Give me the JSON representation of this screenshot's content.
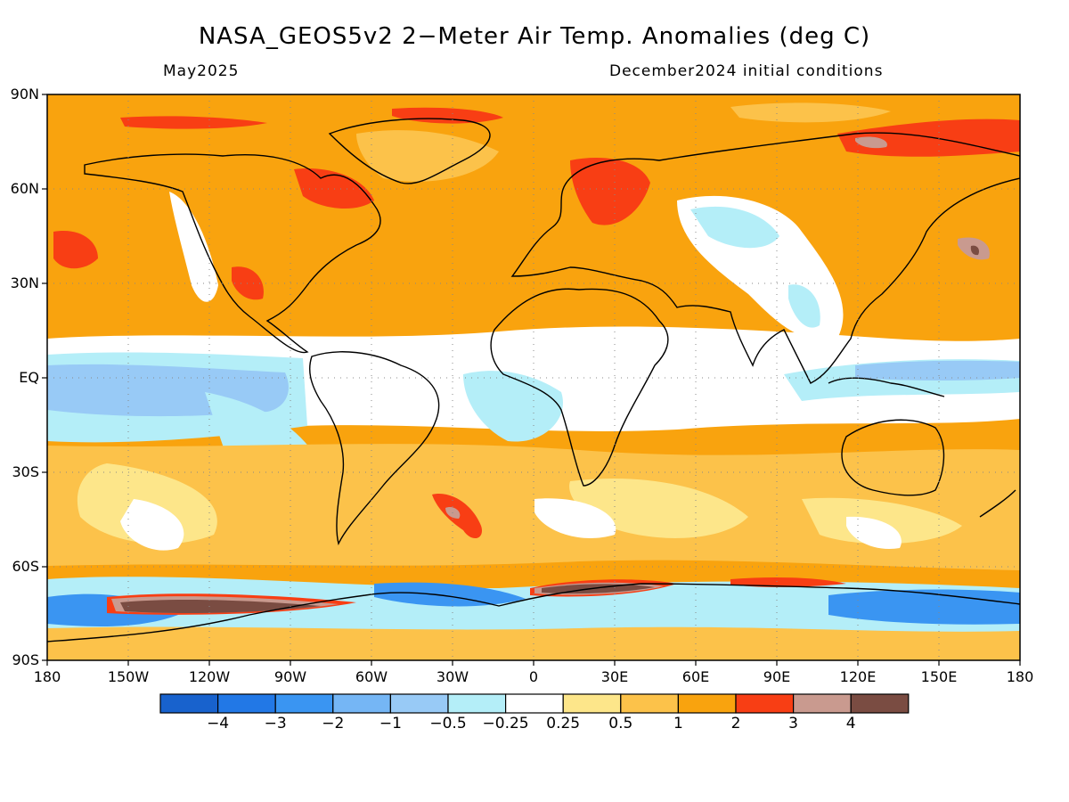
{
  "title": "NASA_GEOS5v2 2−Meter Air Temp. Anomalies (deg C)",
  "subtitle_left": "May2025",
  "subtitle_right": "December2024 initial conditions",
  "lat_labels": [
    "90N",
    "60N",
    "30N",
    "EQ",
    "30S",
    "60S",
    "90S"
  ],
  "lon_labels": [
    "180",
    "150W",
    "120W",
    "90W",
    "60W",
    "30W",
    "0",
    "30E",
    "60E",
    "90E",
    "120E",
    "150E",
    "180"
  ],
  "colorbar": {
    "colors": [
      "#1862cd",
      "#2278e6",
      "#3a95f2",
      "#75b6f5",
      "#98caf6",
      "#b4eef8",
      "#ffffff",
      "#fde68a",
      "#fcc24a",
      "#f9a30e",
      "#f83e14",
      "#c99a8f",
      "#7a4c42"
    ],
    "tick_labels": [
      "−4",
      "−3",
      "−2",
      "−1",
      "−0.5",
      "−0.25",
      "0.25",
      "0.5",
      "1",
      "2",
      "3",
      "4"
    ]
  },
  "colors": {
    "base": "#f9a30e",
    "light": "#fcc24a",
    "pale": "#fde68a",
    "neutral": "#ffffff",
    "cool1": "#b4eef8",
    "cool2": "#98caf6",
    "cool3": "#3a95f2",
    "hot": "#f83e14",
    "hot2": "#c99a8f",
    "hot3": "#7a4c42",
    "coast": "#000000"
  }
}
